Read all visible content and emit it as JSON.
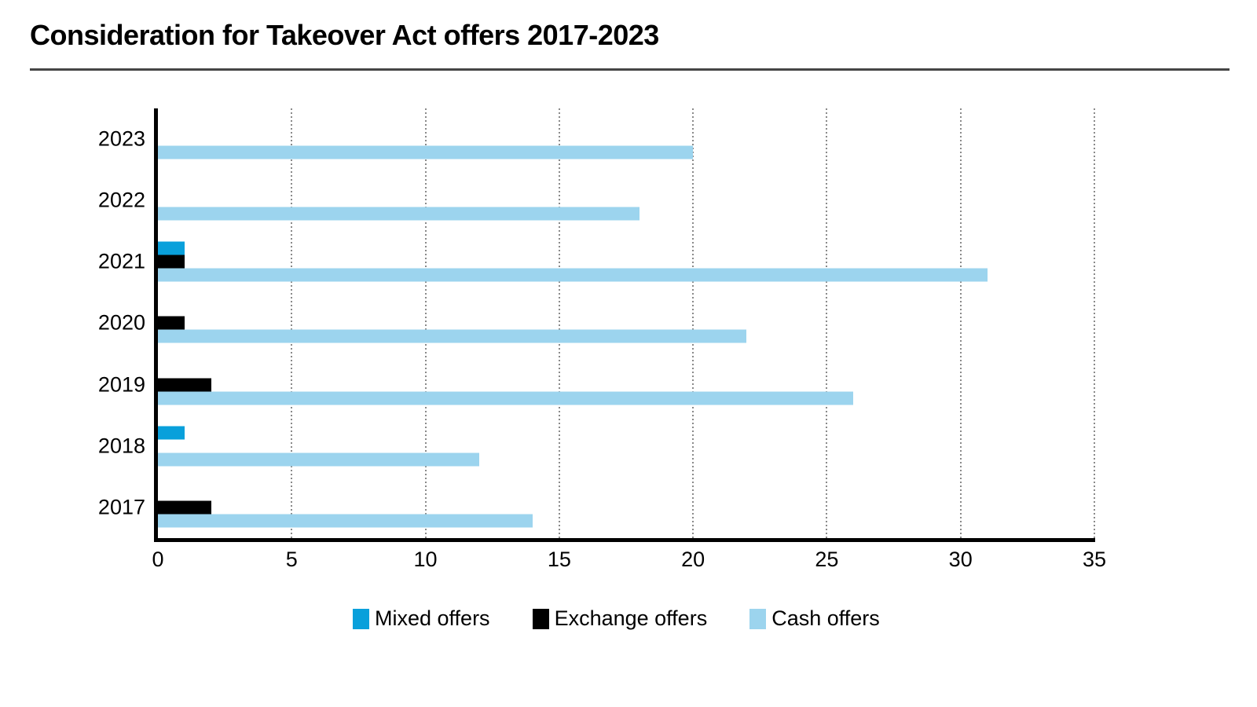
{
  "title": "Consideration for Takeover Act offers 2017-2023",
  "chart_data": {
    "type": "bar",
    "orientation": "horizontal",
    "title": "Consideration for Takeover Act offers 2017-2023",
    "categories": [
      "2023",
      "2022",
      "2021",
      "2020",
      "2019",
      "2018",
      "2017"
    ],
    "series": [
      {
        "name": "Mixed offers",
        "color": "#09a0db",
        "values": [
          0,
          0,
          1,
          0,
          0,
          1,
          0
        ]
      },
      {
        "name": "Exchange offers",
        "color": "#000000",
        "values": [
          0,
          0,
          1,
          1,
          2,
          0,
          2
        ]
      },
      {
        "name": "Cash offers",
        "color": "#9cd4ee",
        "values": [
          20,
          18,
          31,
          22,
          26,
          12,
          14
        ]
      }
    ],
    "xlabel": "",
    "ylabel": "",
    "xlim": [
      0,
      35
    ],
    "xticks": [
      0,
      5,
      10,
      15,
      20,
      25,
      30,
      35
    ],
    "grid": "vertical-dotted",
    "legend_position": "bottom"
  }
}
